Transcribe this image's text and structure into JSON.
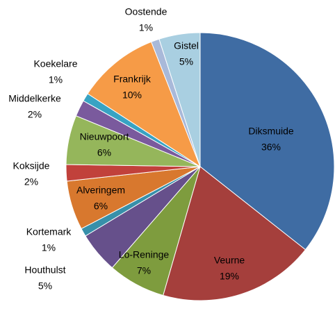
{
  "chart_data": {
    "type": "pie",
    "categories": [
      "Diksmuide",
      "Veurne",
      "Lo-Reninge",
      "Houthulst",
      "Kortemark",
      "Alveringem",
      "Koksijde",
      "Nieuwpoort",
      "Middelkerke",
      "Koekelare",
      "Frankrijk",
      "Oostende",
      "Gistel"
    ],
    "values": [
      36,
      19,
      7,
      5,
      1,
      6,
      2,
      6,
      2,
      1,
      10,
      1,
      5
    ],
    "value_labels": [
      "36%",
      "19%",
      "7%",
      "5%",
      "1%",
      "6%",
      "2%",
      "6%",
      "2%",
      "1%",
      "10%",
      "1%",
      "5%"
    ],
    "colors": [
      "#3f6ca3",
      "#a53f3c",
      "#7e9c3e",
      "#66508b",
      "#3790aa",
      "#d8782e",
      "#c1413b",
      "#95b65b",
      "#7a5a9d",
      "#38a3c3",
      "#f69b47",
      "#a9b9d9",
      "#a9cfe1"
    ]
  }
}
